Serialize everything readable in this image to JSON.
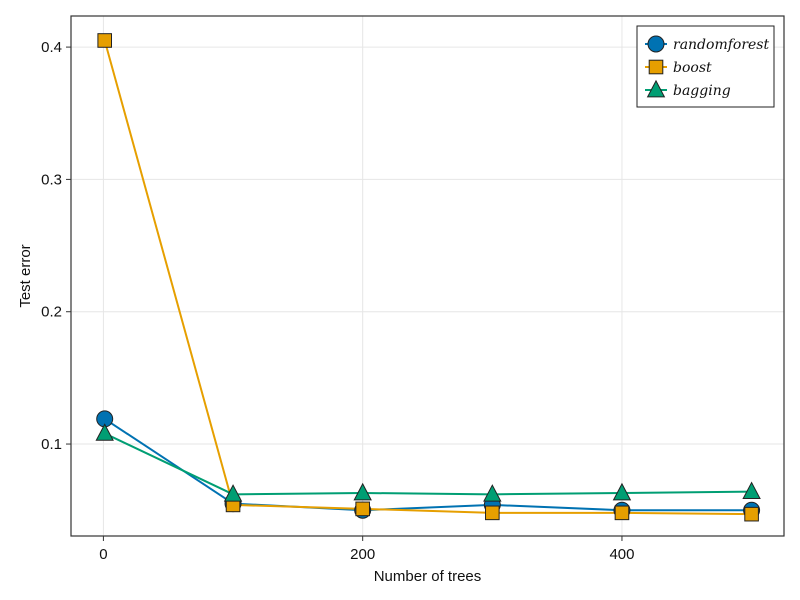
{
  "chart_data": {
    "type": "line",
    "title": "",
    "xlabel": "Number of trees",
    "ylabel": "Test error",
    "xlim": [
      -25,
      525
    ],
    "ylim": [
      0.0305,
      0.4235
    ],
    "x_ticks": [
      0,
      200,
      400
    ],
    "x_tick_labels": [
      "0",
      "200",
      "400"
    ],
    "y_ticks": [
      0.1,
      0.2,
      0.3,
      0.4
    ],
    "y_tick_labels": [
      "0.1",
      "0.2",
      "0.3",
      "0.4"
    ],
    "grid": true,
    "legend_position": "top-right",
    "x": [
      1,
      100,
      200,
      300,
      400,
      500
    ],
    "series": [
      {
        "name": "randomforest",
        "marker": "circle",
        "color": "#0072b2",
        "values": [
          0.119,
          0.055,
          0.05,
          0.054,
          0.05,
          0.05
        ]
      },
      {
        "name": "boost",
        "marker": "square",
        "color": "#e69f00",
        "values": [
          0.405,
          0.054,
          0.051,
          0.048,
          0.048,
          0.047
        ]
      },
      {
        "name": "bagging",
        "marker": "triangle",
        "color": "#009e73",
        "values": [
          0.108,
          0.062,
          0.063,
          0.062,
          0.063,
          0.064
        ]
      }
    ]
  }
}
